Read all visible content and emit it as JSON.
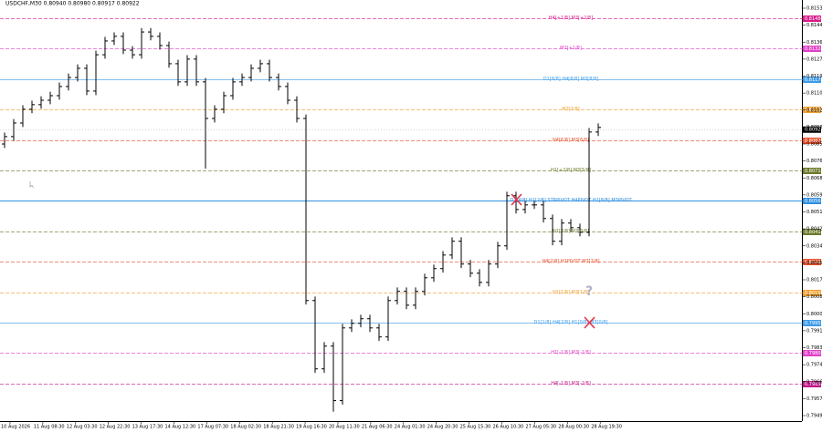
{
  "chart_data": {
    "type": "ohlc",
    "title": "USDCHF,M30  0.80940 0.80980 0.80917 0.80922",
    "xticks": [
      "10 Aug 2026",
      "11 Aug 08:30",
      "12 Aug 03:30",
      "12 Aug 22:30",
      "13 Aug 17:30",
      "14 Aug 12:30",
      "17 Aug 07:30",
      "18 Aug 02:30",
      "18 Aug 21:30",
      "19 Aug 16:30",
      "20 Aug 11:30",
      "21 Aug 06:30",
      "24 Aug 01:30",
      "24 Aug 20:30",
      "25 Aug 15:30",
      "26 Aug 10:30",
      "27 Aug 05:30",
      "28 Aug 00:30",
      "28 Aug 19:30"
    ],
    "ylim": [
      0.7949,
      0.8153
    ],
    "yticks": [
      {
        "value": 0.8153,
        "label": "0.81530"
      },
      {
        "value": 0.81445,
        "label": "0.81445"
      },
      {
        "value": 0.8136,
        "label": "0.81360"
      },
      {
        "value": 0.81275,
        "label": "0.81275"
      },
      {
        "value": 0.8119,
        "label": "0.81190"
      },
      {
        "value": 0.81105,
        "label": "0.81105"
      },
      {
        "value": 0.8102,
        "label": "0.81020"
      },
      {
        "value": 0.80935,
        "label": "0.80935"
      },
      {
        "value": 0.8085,
        "label": "0.80850"
      },
      {
        "value": 0.80765,
        "label": "0.80765"
      },
      {
        "value": 0.8068,
        "label": "0.80680"
      },
      {
        "value": 0.80595,
        "label": "0.80595"
      },
      {
        "value": 0.8051,
        "label": "0.80510"
      },
      {
        "value": 0.80425,
        "label": "0.80425"
      },
      {
        "value": 0.8034,
        "label": "0.80340"
      },
      {
        "value": 0.80255,
        "label": "0.80255"
      },
      {
        "value": 0.8017,
        "label": "0.80170"
      },
      {
        "value": 0.80085,
        "label": "0.80085"
      },
      {
        "value": 0.8,
        "label": "0.80000"
      },
      {
        "value": 0.79915,
        "label": "0.79915"
      },
      {
        "value": 0.7983,
        "label": "0.79830"
      },
      {
        "value": 0.79745,
        "label": "0.79745"
      },
      {
        "value": 0.7966,
        "label": "0.79660"
      },
      {
        "value": 0.79575,
        "label": "0.79575"
      },
      {
        "value": 0.7949,
        "label": "0.79490"
      }
    ],
    "color": "#000000",
    "open": [
      0.8085,
      0.80887,
      0.80955,
      0.81024,
      0.81047,
      0.81069,
      0.81092,
      0.81138,
      0.81183,
      0.81229,
      0.81115,
      0.81297,
      0.81366,
      0.81389,
      0.8132,
      0.81297,
      0.81411,
      0.81389,
      0.81343,
      0.81252,
      0.81161,
      0.81275,
      0.81161,
      0.80978,
      0.81024,
      0.81092,
      0.81161,
      0.81183,
      0.81229,
      0.81252,
      0.81183,
      0.81138,
      0.81069,
      0.80978,
      0.80066,
      0.79724,
      0.79838,
      0.79565,
      0.79929,
      0.79952,
      0.79975,
      0.79929,
      0.79884,
      0.80066,
      0.80112,
      0.80043,
      0.80112,
      0.8018,
      0.80226,
      0.80294,
      0.80363,
      0.80249,
      0.80203,
      0.80157,
      0.80249,
      0.8034,
      0.80591,
      0.80522,
      0.80545,
      0.80545,
      0.80477,
      0.80363,
      0.80454,
      0.80431,
      0.80408,
      0.8091
    ],
    "high": [
      0.80907,
      0.80975,
      0.81044,
      0.81067,
      0.81089,
      0.81112,
      0.81158,
      0.81203,
      0.81249,
      0.81249,
      0.81317,
      0.81386,
      0.81409,
      0.81409,
      0.8134,
      0.81431,
      0.81431,
      0.81409,
      0.81363,
      0.81272,
      0.81295,
      0.81295,
      0.81181,
      0.81044,
      0.81112,
      0.81181,
      0.81203,
      0.81249,
      0.81272,
      0.81272,
      0.81203,
      0.81158,
      0.81089,
      0.80998,
      0.80086,
      0.79858,
      0.79858,
      0.79949,
      0.79972,
      0.79995,
      0.79995,
      0.79949,
      0.80086,
      0.80132,
      0.80132,
      0.80132,
      0.802,
      0.80246,
      0.80314,
      0.80383,
      0.80383,
      0.80269,
      0.80223,
      0.80269,
      0.8036,
      0.80611,
      0.80611,
      0.80565,
      0.80565,
      0.80565,
      0.80497,
      0.80474,
      0.80474,
      0.80451,
      0.8093,
      0.80953
    ],
    "low": [
      0.8083,
      0.80867,
      0.80935,
      0.81004,
      0.81027,
      0.81049,
      0.81072,
      0.81118,
      0.81163,
      0.81095,
      0.81095,
      0.81277,
      0.81346,
      0.813,
      0.81277,
      0.81277,
      0.81369,
      0.81323,
      0.81232,
      0.81141,
      0.81141,
      0.81141,
      0.80727,
      0.80958,
      0.81004,
      0.81072,
      0.81141,
      0.81163,
      0.81209,
      0.81163,
      0.81118,
      0.81049,
      0.80958,
      0.80046,
      0.79704,
      0.79704,
      0.7951,
      0.79545,
      0.79909,
      0.79932,
      0.79909,
      0.79864,
      0.79864,
      0.80046,
      0.80023,
      0.80023,
      0.80092,
      0.8016,
      0.80206,
      0.80274,
      0.80229,
      0.80183,
      0.80137,
      0.80137,
      0.80229,
      0.8032,
      0.80502,
      0.80502,
      0.80525,
      0.80457,
      0.80343,
      0.80343,
      0.80411,
      0.80388,
      0.80388,
      0.8089
    ],
    "close": [
      0.80887,
      0.80955,
      0.81024,
      0.81047,
      0.81069,
      0.81092,
      0.81138,
      0.81183,
      0.81229,
      0.81115,
      0.81297,
      0.81366,
      0.81389,
      0.8132,
      0.81297,
      0.81411,
      0.81389,
      0.81343,
      0.81252,
      0.81161,
      0.81275,
      0.81161,
      0.80978,
      0.81024,
      0.81092,
      0.81161,
      0.81183,
      0.81229,
      0.81252,
      0.81183,
      0.81138,
      0.81069,
      0.80978,
      0.80066,
      0.79724,
      0.79838,
      0.79565,
      0.79929,
      0.79952,
      0.79975,
      0.79929,
      0.79884,
      0.80066,
      0.80112,
      0.80043,
      0.80112,
      0.8018,
      0.80226,
      0.80294,
      0.80363,
      0.80249,
      0.80203,
      0.80157,
      0.80249,
      0.8034,
      0.80591,
      0.80522,
      0.80545,
      0.80545,
      0.80477,
      0.80363,
      0.80454,
      0.80431,
      0.80408,
      0.8091,
      0.80933
    ],
    "current_price": {
      "value": 0.80922,
      "label": "0.80922"
    },
    "levels": [
      {
        "name": "H4[+1/8] M3[+2/8]",
        "color": "#d81b8c",
        "value": 0.8148,
        "value_label": "0.81480"
      },
      {
        "name": "M3[+1/8]",
        "color": "#e040c8",
        "value": 0.81328,
        "value_label": "0.81328"
      },
      {
        "name": "D1[8/8] H4[8/8] M3[8/8]",
        "color": "#3d9be9",
        "value": 0.81175,
        "value_label": "0.81175"
      },
      {
        "name": "M3[7/8]",
        "color": "#f0a030",
        "value": 0.81023,
        "value_label": "0.81023"
      },
      {
        "name": "H4[6/8] M3[6/8]",
        "color": "#e8502a",
        "value": 0.8087,
        "value_label": "0.80870"
      },
      {
        "name": "H1[+2/8] M3[5/8]",
        "color": "#6b7a2a",
        "value": 0.80718,
        "value_label": "0.80718"
      },
      {
        "name": "D1[4/8] H1[2/8] STRPIVOT H4PIVOT H1[8/8] M3PIVOT",
        "color": "#2f8fe0",
        "value": 0.80565,
        "value_label": "0.80565"
      },
      {
        "name": "H1[3/8] M3[3/8]",
        "color": "#6b7a2a",
        "value": 0.80413,
        "value_label": "0.80413"
      },
      {
        "name": "H4[2/8] H1PIVOT M3[2/8]",
        "color": "#e8502a",
        "value": 0.8026,
        "value_label": "0.80260"
      },
      {
        "name": "H1[1/8] M3[1/8]",
        "color": "#f0a030",
        "value": 0.80108,
        "value_label": "0.80108"
      },
      {
        "name": "D1[1/8] H4[2/8] H1[0/8] M3[0/8]",
        "color": "#3d9be9",
        "value": 0.79955,
        "value_label": "0.79955"
      },
      {
        "name": "H1[-1/8] M3[-1/8]",
        "color": "#e040c8",
        "value": 0.79803,
        "value_label": "0.79803"
      },
      {
        "name": "H4[-1/8] M3[-2/8]",
        "color": "#c0188a",
        "value": 0.7965,
        "value_label": "0.79650"
      }
    ]
  }
}
